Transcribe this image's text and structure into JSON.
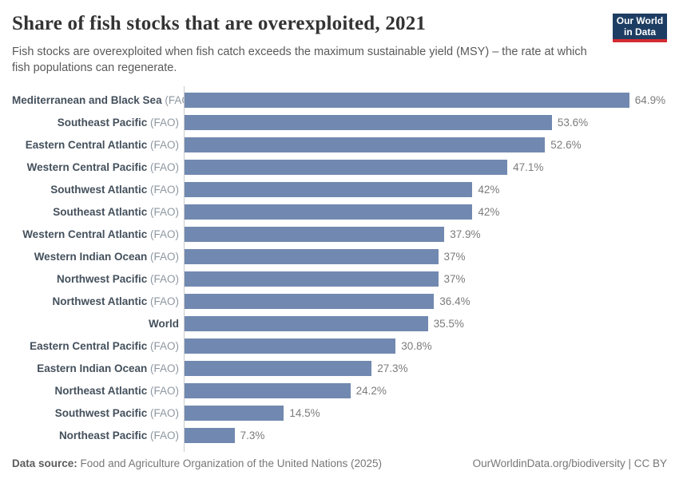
{
  "header": {
    "title": "Share of fish stocks that are overexploited, 2021",
    "subtitle": "Fish stocks are overexploited when fish catch exceeds the maximum sustainable yield (MSY) – the rate at which fish populations can regenerate.",
    "logo_line1": "Our World",
    "logo_line2": "in Data"
  },
  "chart_data": {
    "type": "bar",
    "orientation": "horizontal",
    "title": "Share of fish stocks that are overexploited, 2021",
    "categories": [
      "Mediterranean and Black Sea",
      "Southeast Pacific",
      "Eastern Central Atlantic",
      "Western Central Pacific",
      "Southwest Atlantic",
      "Southeast Atlantic",
      "Western Central Atlantic",
      "Western Indian Ocean",
      "Northwest Pacific",
      "Northwest Atlantic",
      "World",
      "Eastern Central Pacific",
      "Eastern Indian Ocean",
      "Northeast Atlantic",
      "Southwest Pacific",
      "Northeast Pacific"
    ],
    "category_suffixes": [
      "(FAO)",
      "(FAO)",
      "(FAO)",
      "(FAO)",
      "(FAO)",
      "(FAO)",
      "(FAO)",
      "(FAO)",
      "(FAO)",
      "(FAO)",
      "",
      "(FAO)",
      "(FAO)",
      "(FAO)",
      "(FAO)",
      "(FAO)"
    ],
    "values": [
      64.9,
      53.6,
      52.6,
      47.1,
      42,
      42,
      37.9,
      37,
      37,
      36.4,
      35.5,
      30.8,
      27.3,
      24.2,
      14.5,
      7.3
    ],
    "value_labels": [
      "64.9%",
      "53.6%",
      "52.6%",
      "47.1%",
      "42%",
      "42%",
      "37.9%",
      "37%",
      "37%",
      "36.4%",
      "35.5%",
      "30.8%",
      "27.3%",
      "24.2%",
      "14.5%",
      "7.3%"
    ],
    "xlabel": "",
    "ylabel": "",
    "xlim": [
      0,
      65
    ],
    "grid": false,
    "legend": "none"
  },
  "footer": {
    "source_label": "Data source:",
    "source_text": "Food and Agriculture Organization of the United Nations (2025)",
    "rights": "OurWorldinData.org/biodiversity | CC BY"
  },
  "colors": {
    "bar": "#7189b0",
    "axis": "#cccccc",
    "logo_bg": "#1d3d63",
    "logo_accent": "#d42b32"
  }
}
